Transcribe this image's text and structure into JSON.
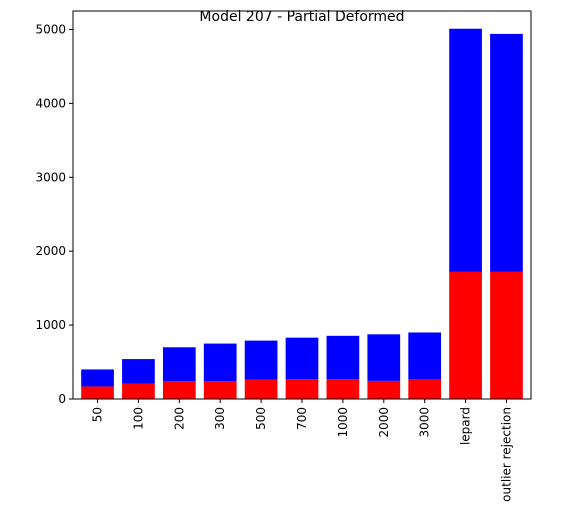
{
  "chart_data": {
    "type": "bar",
    "stacked": true,
    "title": "Model 207 - Partial Deformed",
    "xlabel": "",
    "ylabel": "",
    "categories": [
      "50",
      "100",
      "200",
      "300",
      "500",
      "700",
      "1000",
      "2000",
      "3000",
      "lepard",
      "outlier rejection"
    ],
    "series": [
      {
        "color": "#ff0000",
        "values": [
          170,
          210,
          240,
          240,
          260,
          270,
          270,
          245,
          265,
          1720,
          1720
        ]
      },
      {
        "color": "#0000ff",
        "values": [
          230,
          330,
          460,
          510,
          530,
          560,
          585,
          630,
          635,
          3290,
          3220
        ]
      }
    ],
    "ylim": [
      0,
      5250
    ],
    "yticks": [
      0,
      1000,
      2000,
      3000,
      4000,
      5000
    ],
    "grid": false,
    "legend": "none"
  }
}
